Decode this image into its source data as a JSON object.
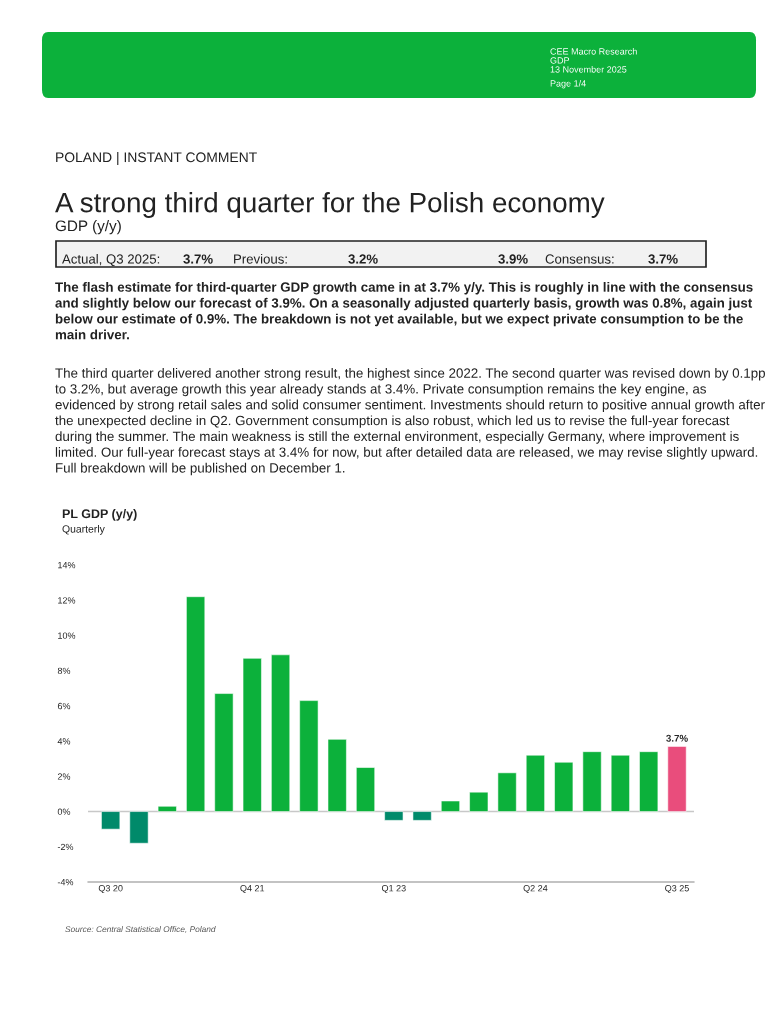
{
  "chart_data": {
    "type": "bar",
    "title": "PL GDP (y/y)",
    "subtitle": "Quarterly",
    "categories": [
      "Q3 20",
      null,
      null,
      null,
      null,
      "Q4 21",
      null,
      null,
      null,
      null,
      "Q1 23",
      null,
      null,
      null,
      null,
      "Q2 24",
      null,
      null,
      null,
      null,
      "Q3 25"
    ],
    "values": [
      -1.0,
      -1.8,
      0.3,
      12.2,
      6.7,
      8.7,
      8.9,
      6.3,
      4.1,
      2.5,
      -0.5,
      -0.5,
      0.6,
      1.1,
      2.2,
      3.2,
      2.8,
      3.4,
      3.2,
      3.4,
      3.7
    ],
    "colors": [
      "#008a6a",
      "#008a6a",
      "#0cb13b",
      "#0cb13b",
      "#0cb13b",
      "#0cb13b",
      "#0cb13b",
      "#0cb13b",
      "#0cb13b",
      "#0cb13b",
      "#008a6a",
      "#008a6a",
      "#0cb13b",
      "#0cb13b",
      "#0cb13b",
      "#0cb13b",
      "#0cb13b",
      "#0cb13b",
      "#0cb13b",
      "#0cb13b",
      "#e94d7c"
    ],
    "value_labels": [
      null,
      null,
      null,
      null,
      null,
      null,
      null,
      null,
      null,
      null,
      null,
      null,
      null,
      null,
      null,
      null,
      null,
      null,
      null,
      null,
      "3.7%"
    ],
    "ylim": [
      -4,
      14
    ],
    "yticks": [
      {
        "value": -4,
        "label": "-4%"
      },
      {
        "value": -2,
        "label": "-2%"
      },
      {
        "value": 0,
        "label": "0%"
      },
      {
        "value": 2,
        "label": "2%"
      },
      {
        "value": 4,
        "label": "4%"
      },
      {
        "value": 6,
        "label": "6%"
      },
      {
        "value": 8,
        "label": "8%"
      },
      {
        "value": 10,
        "label": "10%"
      },
      {
        "value": 12,
        "label": "12%"
      },
      {
        "value": 14,
        "label": "14%"
      }
    ],
    "ref_lines": [
      {
        "axis": "y",
        "value": 0,
        "color": "#c8c8c8"
      }
    ],
    "grid": false,
    "legend": false,
    "annotations": [
      "CEE Macro Research",
      "GDP",
      "13 November 2025",
      "Page 1/4",
      "POLAND | INSTANT COMMENT",
      "A strong third quarter for the Polish economy",
      "GDP (y/y)",
      "Actual, Q3 2025:",
      "3.7%",
      "Previous:",
      "3.2%",
      "3.9%",
      "Consensus:",
      "3.7%",
      "The flash estimate for third-quarter GDP growth came in at 3.7% y/y. This is roughly in line with the consensus and slightly below our forecast of 3.9%. On a seasonally adjusted quarterly basis, growth was 0.8%, again just below our estimate of 0.9%. The breakdown is not yet available, but we expect private consumption to be the main driver.",
      "The third quarter delivered another strong result, the highest since 2022. The second quarter was revised down by 0.1pp to 3.2%, but average growth this year already stands at 3.4%. Private consumption remains the key engine, as evidenced by strong retail sales and solid consumer sentiment. Investments should return to positive annual growth after the unexpected decline in Q2. Government consumption is also robust, which led us to revise the full-year forecast during the summer. The main weakness is still the external environment, especially Germany, where improvement is limited. Our full-year forecast stays at 3.4% for now, but after detailed data are released, we may revise slightly upward. Full breakdown will be published on December 1.",
      "Source: Central Statistical Office, Poland"
    ]
  }
}
